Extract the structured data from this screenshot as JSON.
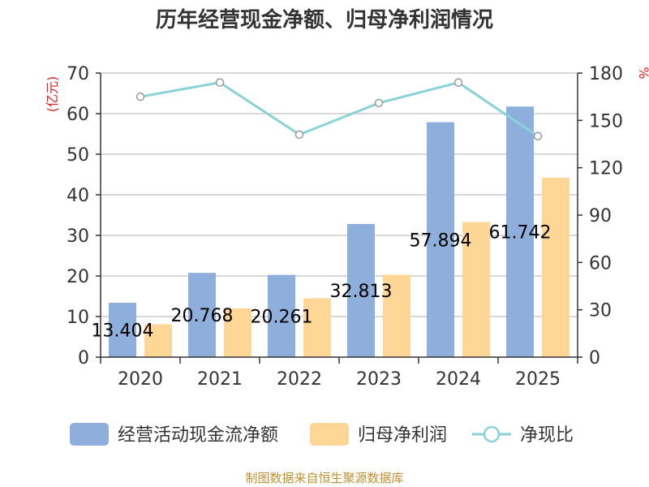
{
  "title": "历年经营现金净额、归母净利润情况",
  "source": "制图数据来自恒生聚源数据库",
  "left_axis_unit": "(亿元)",
  "right_axis_unit": "%",
  "legend": {
    "bar1": "经营活动现金流净额",
    "bar2": "归母净利润",
    "line": "净现比"
  },
  "colors": {
    "bar1": "#8eaedb",
    "bar2": "#fed797",
    "line": "#88d2d8",
    "axis_unit": "#e02020",
    "grid": "#cccccc",
    "axis": "#333333",
    "text": "#333333"
  },
  "chart_data": {
    "type": "bar",
    "categories": [
      "2020",
      "2021",
      "2022",
      "2023",
      "2024",
      "2025"
    ],
    "series": [
      {
        "name": "经营活动现金流净额",
        "axis": "left",
        "type": "bar",
        "values": [
          13.404,
          20.768,
          20.261,
          32.813,
          57.894,
          61.742
        ]
      },
      {
        "name": "归母净利润",
        "axis": "left",
        "type": "bar",
        "values": [
          8.1,
          12.0,
          14.5,
          20.3,
          33.3,
          44.2
        ]
      },
      {
        "name": "净现比",
        "axis": "right",
        "type": "line",
        "values": [
          165,
          174,
          141,
          161,
          174,
          140
        ]
      }
    ],
    "data_labels": [
      "13.404",
      "20.768",
      "20.261",
      "32.813",
      "57.894",
      "61.742"
    ],
    "left_axis": {
      "min": 0,
      "max": 70,
      "ticks": [
        0,
        10,
        20,
        30,
        40,
        50,
        60,
        70
      ]
    },
    "right_axis": {
      "min": 0,
      "max": 180,
      "ticks": [
        0,
        30,
        60,
        90,
        120,
        150,
        180
      ]
    },
    "grid": true,
    "legend_position": "bottom"
  }
}
